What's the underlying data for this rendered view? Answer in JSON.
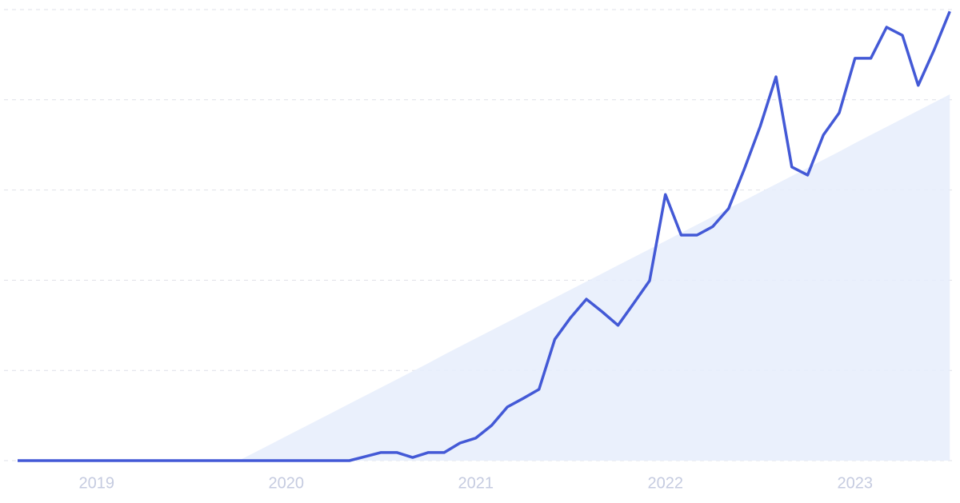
{
  "chart_data": {
    "type": "line",
    "categories": [
      null,
      null,
      null,
      null,
      null,
      "2019",
      null,
      null,
      null,
      null,
      null,
      null,
      null,
      null,
      null,
      null,
      null,
      "2020",
      null,
      null,
      null,
      null,
      null,
      null,
      null,
      null,
      null,
      null,
      null,
      "2021",
      null,
      null,
      null,
      null,
      null,
      null,
      null,
      null,
      null,
      null,
      null,
      "2022",
      null,
      null,
      null,
      null,
      null,
      null,
      null,
      null,
      null,
      null,
      null,
      "2023",
      null,
      null,
      null,
      null,
      null,
      null
    ],
    "series": [
      {
        "style": "area",
        "color": "#e6edfc",
        "values": [
          null,
          null,
          null,
          null,
          null,
          null,
          null,
          null,
          null,
          null,
          null,
          null,
          null,
          null,
          0,
          1.8,
          3.6,
          5.4,
          7.2,
          9.0,
          10.8,
          12.6,
          14.4,
          16.2,
          18.0,
          19.8,
          21.6,
          23.5,
          25.3,
          27.1,
          28.9,
          30.7,
          32.5,
          34.3,
          36.1,
          37.9,
          39.7,
          41.5,
          43.3,
          45.1,
          46.9,
          48.7,
          50.5,
          52.3,
          54.1,
          55.9,
          57.7,
          59.5,
          61.3,
          63.1,
          64.9,
          66.7,
          68.5,
          70.4,
          72.2,
          74.0,
          75.8,
          77.6,
          79.4,
          81.2
        ]
      },
      {
        "style": "line",
        "color": "#4359d6",
        "values": [
          0,
          0,
          0,
          0,
          0,
          0,
          0,
          0,
          0,
          0,
          0,
          0,
          0,
          0,
          0,
          0,
          0,
          0,
          0,
          0,
          0,
          0,
          0.9,
          1.8,
          1.8,
          0.7,
          1.8,
          1.8,
          3.9,
          5.0,
          7.8,
          11.9,
          13.8,
          15.8,
          26.9,
          31.7,
          35.8,
          33.0,
          30.0,
          34.9,
          39.9,
          59.0,
          50.0,
          50.0,
          51.9,
          55.9,
          64.7,
          74.1,
          85.1,
          65.1,
          63.3,
          72.2,
          77.1,
          89.2,
          89.2,
          96.1,
          94.3,
          83.2,
          91.0,
          99.6
        ]
      }
    ],
    "ylim": [
      0,
      100
    ],
    "yticks": [
      0,
      20,
      40,
      60,
      80,
      100
    ],
    "grid": true
  }
}
